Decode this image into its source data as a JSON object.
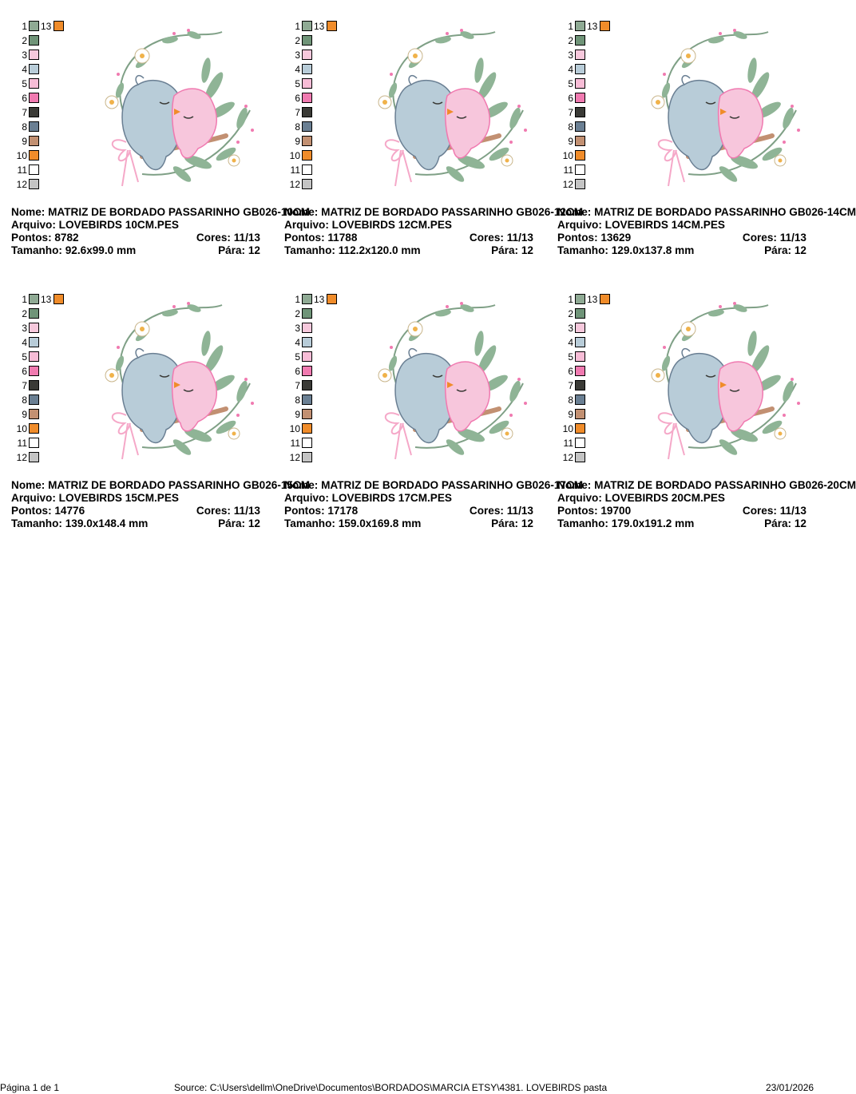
{
  "colors": [
    {
      "num": "1",
      "hex": "#8faa94"
    },
    {
      "num": "2",
      "hex": "#6f9478"
    },
    {
      "num": "3",
      "hex": "#f6c8dc"
    },
    {
      "num": "4",
      "hex": "#b8ccd8"
    },
    {
      "num": "5",
      "hex": "#f7bcd6"
    },
    {
      "num": "6",
      "hex": "#f07ab0"
    },
    {
      "num": "7",
      "hex": "#3a3a36"
    },
    {
      "num": "8",
      "hex": "#6a7f93"
    },
    {
      "num": "9",
      "hex": "#c29072"
    },
    {
      "num": "10",
      "hex": "#f08c2a"
    },
    {
      "num": "11",
      "hex": "#ffffff"
    },
    {
      "num": "12",
      "hex": "#c4c4c4"
    },
    {
      "num": "13",
      "hex": "#f08c2a"
    }
  ],
  "designs": [
    {
      "nome_label": "Nome:",
      "nome": "MATRIZ DE BORDADO PASSARINHO GB026-10CM",
      "arquivo_label": "Arquivo:",
      "arquivo": "LOVEBIRDS 10CM.PES",
      "pontos_label": "Pontos:",
      "pontos": "8782",
      "cores_label": "Cores:",
      "cores": "11/13",
      "tamanho_label": "Tamanho:",
      "tamanho": "92.6x99.0 mm",
      "para_label": "Pára:",
      "para": "12"
    },
    {
      "nome_label": "Nome:",
      "nome": "MATRIZ DE BORDADO PASSARINHO GB026-12CM",
      "arquivo_label": "Arquivo:",
      "arquivo": "LOVEBIRDS 12CM.PES",
      "pontos_label": "Pontos:",
      "pontos": "11788",
      "cores_label": "Cores:",
      "cores": "11/13",
      "tamanho_label": "Tamanho:",
      "tamanho": "112.2x120.0 mm",
      "para_label": "Pára:",
      "para": "12"
    },
    {
      "nome_label": "Nome:",
      "nome": "MATRIZ DE BORDADO PASSARINHO GB026-14CM",
      "arquivo_label": "Arquivo:",
      "arquivo": "LOVEBIRDS 14CM.PES",
      "pontos_label": "Pontos:",
      "pontos": "13629",
      "cores_label": "Cores:",
      "cores": "11/13",
      "tamanho_label": "Tamanho:",
      "tamanho": "129.0x137.8 mm",
      "para_label": "Pára:",
      "para": "12"
    },
    {
      "nome_label": "Nome:",
      "nome": "MATRIZ DE BORDADO PASSARINHO GB026-15CM",
      "arquivo_label": "Arquivo:",
      "arquivo": "LOVEBIRDS 15CM.PES",
      "pontos_label": "Pontos:",
      "pontos": "14776",
      "cores_label": "Cores:",
      "cores": "11/13",
      "tamanho_label": "Tamanho:",
      "tamanho": "139.0x148.4 mm",
      "para_label": "Pára:",
      "para": "12"
    },
    {
      "nome_label": "Nome:",
      "nome": "MATRIZ DE BORDADO PASSARINHO GB026-17CM",
      "arquivo_label": "Arquivo:",
      "arquivo": "LOVEBIRDS 17CM.PES",
      "pontos_label": "Pontos:",
      "pontos": "17178",
      "cores_label": "Cores:",
      "cores": "11/13",
      "tamanho_label": "Tamanho:",
      "tamanho": "159.0x169.8 mm",
      "para_label": "Pára:",
      "para": "12"
    },
    {
      "nome_label": "Nome:",
      "nome": "MATRIZ DE BORDADO PASSARINHO GB026-20CM",
      "arquivo_label": "Arquivo:",
      "arquivo": "LOVEBIRDS 20CM.PES",
      "pontos_label": "Pontos:",
      "pontos": "19700",
      "cores_label": "Cores:",
      "cores": "11/13",
      "tamanho_label": "Tamanho:",
      "tamanho": "179.0x191.2 mm",
      "para_label": "Pára:",
      "para": "12"
    }
  ],
  "footer": {
    "page": "Página 1 de 1",
    "source": "Source: C:\\Users\\dellm\\OneDrive\\Documentos\\BORDADOS\\MARCIA ETSY\\4381. LOVEBIRDS pasta",
    "date": "23/01/2026"
  }
}
